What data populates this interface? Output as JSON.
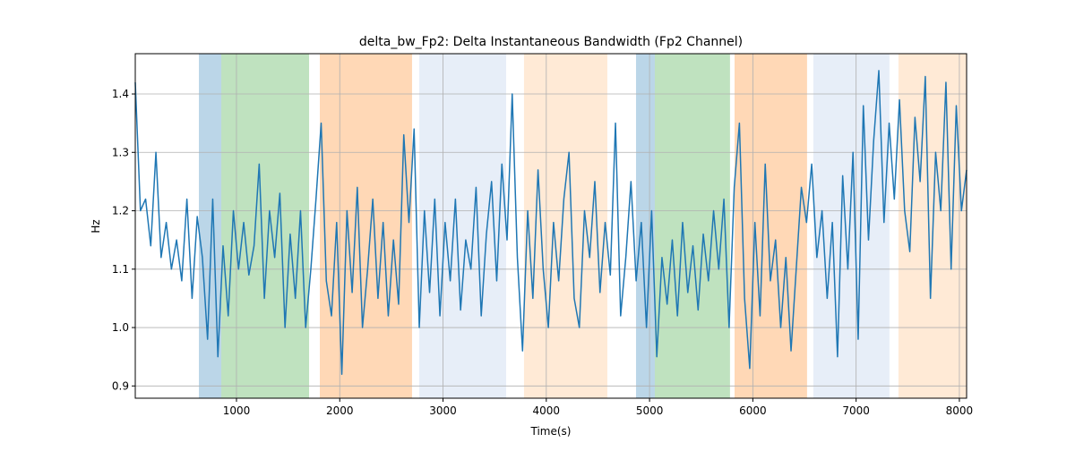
{
  "chart_data": {
    "type": "line",
    "title": "delta_bw_Fp2: Delta Instantaneous Bandwidth (Fp2 Channel)",
    "x_label": "Time(s)",
    "y_label": "Hz",
    "xlim": [
      20,
      8070
    ],
    "ylim": [
      0.879,
      1.469
    ],
    "xticks": [
      1000,
      2000,
      3000,
      4000,
      5000,
      6000,
      7000,
      8000
    ],
    "yticks": [
      0.9,
      {
        "value": 1,
        "label": "1.0"
      },
      1.1,
      1.2,
      1.3,
      1.4
    ],
    "grid": true,
    "span_opacity": 0.3,
    "spans": [
      {
        "start": 636,
        "end": 853,
        "color": "#1f77b4"
      },
      {
        "start": 853,
        "end": 1703,
        "color": "#2ca02c"
      },
      {
        "start": 1807,
        "end": 2700,
        "color": "#ff7f0e"
      },
      {
        "start": 2770,
        "end": 3611,
        "color": "#aec7e8"
      },
      {
        "start": 3784,
        "end": 4591,
        "color": "#ffbb78"
      },
      {
        "start": 4869,
        "end": 5051,
        "color": "#1f77b4"
      },
      {
        "start": 5051,
        "end": 5779,
        "color": "#2ca02c"
      },
      {
        "start": 5823,
        "end": 6525,
        "color": "#ff7f0e"
      },
      {
        "start": 6586,
        "end": 7323,
        "color": "#aec7e8"
      },
      {
        "start": 7410,
        "end": 8070,
        "color": "#ffbb78"
      }
    ],
    "x": [
      20,
      70,
      120,
      170,
      220,
      270,
      320,
      370,
      420,
      470,
      520,
      570,
      620,
      670,
      720,
      770,
      820,
      870,
      920,
      970,
      1020,
      1070,
      1120,
      1170,
      1220,
      1270,
      1320,
      1370,
      1420,
      1470,
      1520,
      1570,
      1620,
      1670,
      1720,
      1770,
      1820,
      1870,
      1920,
      1970,
      2020,
      2070,
      2120,
      2170,
      2220,
      2270,
      2320,
      2370,
      2420,
      2470,
      2520,
      2570,
      2620,
      2670,
      2720,
      2770,
      2820,
      2870,
      2920,
      2970,
      3020,
      3070,
      3120,
      3170,
      3220,
      3270,
      3320,
      3370,
      3420,
      3470,
      3520,
      3570,
      3620,
      3670,
      3720,
      3770,
      3820,
      3870,
      3920,
      3970,
      4020,
      4070,
      4120,
      4170,
      4220,
      4270,
      4320,
      4370,
      4420,
      4470,
      4520,
      4570,
      4620,
      4670,
      4720,
      4770,
      4820,
      4870,
      4920,
      4970,
      5020,
      5070,
      5120,
      5170,
      5220,
      5270,
      5320,
      5370,
      5420,
      5470,
      5520,
      5570,
      5620,
      5670,
      5720,
      5770,
      5820,
      5870,
      5920,
      5970,
      6020,
      6070,
      6120,
      6170,
      6220,
      6270,
      6320,
      6370,
      6420,
      6470,
      6520,
      6570,
      6620,
      6670,
      6720,
      6770,
      6820,
      6870,
      6920,
      6970,
      7020,
      7070,
      7120,
      7170,
      7220,
      7270,
      7320,
      7370,
      7420,
      7470,
      7520,
      7570,
      7620,
      7670,
      7720,
      7770,
      7820,
      7870,
      7920,
      7970,
      8020,
      8070
    ],
    "series": [
      {
        "color": "#1f77b4",
        "values": [
          1.42,
          1.2,
          1.22,
          1.14,
          1.3,
          1.12,
          1.18,
          1.1,
          1.15,
          1.08,
          1.22,
          1.05,
          1.19,
          1.12,
          0.98,
          1.22,
          0.95,
          1.14,
          1.02,
          1.2,
          1.1,
          1.18,
          1.09,
          1.14,
          1.28,
          1.05,
          1.2,
          1.12,
          1.23,
          1.0,
          1.16,
          1.05,
          1.2,
          1.0,
          1.1,
          1.22,
          1.35,
          1.08,
          1.02,
          1.18,
          0.92,
          1.2,
          1.06,
          1.24,
          1.0,
          1.1,
          1.22,
          1.05,
          1.18,
          1.02,
          1.15,
          1.04,
          1.33,
          1.18,
          1.34,
          1.0,
          1.2,
          1.06,
          1.22,
          1.02,
          1.18,
          1.08,
          1.22,
          1.03,
          1.15,
          1.1,
          1.24,
          1.02,
          1.16,
          1.25,
          1.08,
          1.28,
          1.15,
          1.4,
          1.12,
          0.96,
          1.2,
          1.05,
          1.27,
          1.1,
          1.0,
          1.18,
          1.08,
          1.22,
          1.3,
          1.05,
          1.0,
          1.2,
          1.12,
          1.25,
          1.06,
          1.18,
          1.09,
          1.35,
          1.02,
          1.12,
          1.25,
          1.08,
          1.18,
          1.0,
          1.2,
          0.95,
          1.12,
          1.04,
          1.15,
          1.02,
          1.18,
          1.06,
          1.14,
          1.03,
          1.16,
          1.08,
          1.2,
          1.1,
          1.22,
          1.0,
          1.24,
          1.35,
          1.05,
          0.93,
          1.18,
          1.02,
          1.28,
          1.08,
          1.15,
          1.0,
          1.12,
          0.96,
          1.1,
          1.24,
          1.18,
          1.28,
          1.12,
          1.2,
          1.05,
          1.18,
          0.95,
          1.26,
          1.1,
          1.3,
          0.98,
          1.38,
          1.15,
          1.32,
          1.44,
          1.18,
          1.35,
          1.22,
          1.39,
          1.2,
          1.13,
          1.36,
          1.25,
          1.43,
          1.05,
          1.3,
          1.2,
          1.42,
          1.1,
          1.38,
          1.2,
          1.27
        ]
      }
    ]
  }
}
